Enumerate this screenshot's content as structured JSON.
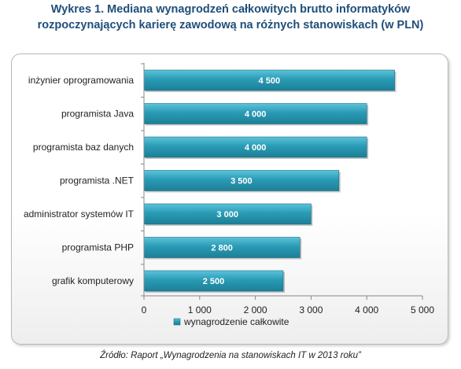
{
  "title_line1": "Wykres 1. Mediana wynagrodzeń całkowitych brutto informatyków",
  "title_line2": "rozpoczynających karierę zawodową na różnych stanowiskach (w PLN)",
  "source": "Źródło: Raport „Wynagrodzenia na stanowiskach IT w 2013 roku”",
  "bar_color": "#2a9bb5",
  "chart_data": {
    "type": "bar",
    "orientation": "horizontal",
    "title": "Wykres 1. Mediana wynagrodzeń całkowitych brutto informatyków rozpoczynających karierę zawodową na różnych stanowiskach (w PLN)",
    "categories": [
      "inżynier oprogramowania",
      "programista Java",
      "programista baz danych",
      "programista .NET",
      "administrator systemów IT",
      "programista PHP",
      "grafik komputerowy"
    ],
    "series": [
      {
        "name": "wynagrodzenie całkowite",
        "values": [
          4500,
          4000,
          4000,
          3500,
          3000,
          2800,
          2500
        ],
        "data_labels": [
          "4 500",
          "4 000",
          "4 000",
          "3 500",
          "3 000",
          "2 800",
          "2 500"
        ]
      }
    ],
    "xlim": [
      0,
      5000
    ],
    "x_ticks": [
      0,
      1000,
      2000,
      3000,
      4000,
      5000
    ],
    "x_tick_labels": [
      "0",
      "1 000",
      "2 000",
      "3 000",
      "4 000",
      "5 000"
    ],
    "grid": false,
    "legend": "bottom"
  }
}
